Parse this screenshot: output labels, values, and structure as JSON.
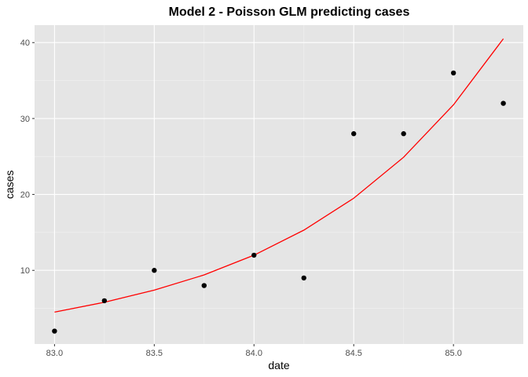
{
  "chart_data": {
    "type": "scatter",
    "title": "Model 2 - Poisson GLM predicting cases",
    "xlabel": "date",
    "ylabel": "cases",
    "xlim": [
      82.9,
      85.35
    ],
    "ylim": [
      0.3,
      42.3
    ],
    "x_ticks": [
      83.0,
      83.5,
      84.0,
      84.5,
      85.0
    ],
    "x_tick_labels": [
      "83.0",
      "83.5",
      "84.0",
      "84.5",
      "85.0"
    ],
    "y_ticks": [
      10,
      20,
      30,
      40
    ],
    "y_tick_labels": [
      "10",
      "20",
      "30",
      "40"
    ],
    "grid": true,
    "background": "#e5e5e5",
    "series": [
      {
        "kind": "points",
        "color": "#000000",
        "x": [
          83.0,
          83.25,
          83.5,
          83.75,
          84.0,
          84.25,
          84.5,
          84.75,
          85.0,
          85.25
        ],
        "y": [
          2,
          6,
          10,
          8,
          12,
          9,
          28,
          28,
          36,
          32
        ]
      },
      {
        "kind": "line",
        "color": "#ff0000",
        "x": [
          83.0,
          83.25,
          83.5,
          83.75,
          84.0,
          84.25,
          84.5,
          84.75,
          85.0,
          85.25
        ],
        "y": [
          4.5,
          5.8,
          7.4,
          9.4,
          12.0,
          15.3,
          19.5,
          24.9,
          31.8,
          40.5
        ]
      }
    ]
  }
}
